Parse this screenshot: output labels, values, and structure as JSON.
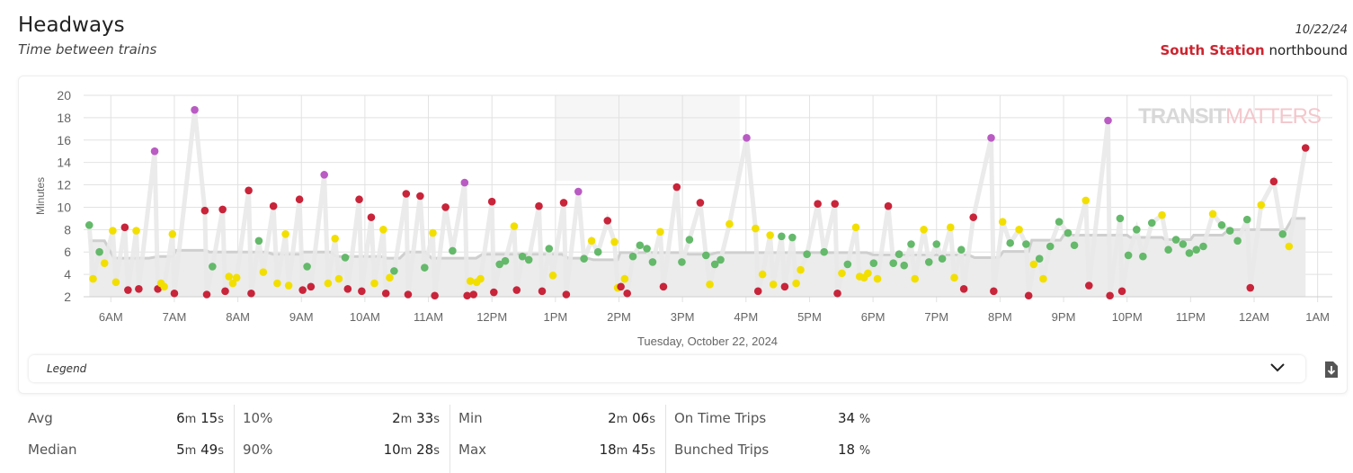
{
  "header": {
    "title": "Headways",
    "subtitle": "Time between trains",
    "date": "10/22/24",
    "station": "South Station",
    "direction": "northbound"
  },
  "legend": {
    "label": "Legend"
  },
  "stats": [
    {
      "label": "Avg",
      "min": "6",
      "sec": "15"
    },
    {
      "label": "Median",
      "min": "5",
      "sec": "49"
    },
    {
      "label": "10%",
      "min": "2",
      "sec": "33"
    },
    {
      "label": "90%",
      "min": "10",
      "sec": "28"
    },
    {
      "label": "Min",
      "min": "2",
      "sec": "06"
    },
    {
      "label": "Max",
      "min": "18",
      "sec": "45"
    },
    {
      "label": "On Time Trips",
      "value": "34",
      "unit": "%"
    },
    {
      "label": "Bunched Trips",
      "value": "18",
      "unit": "%"
    }
  ],
  "units": {
    "m": "m",
    "s": "s"
  },
  "watermark": {
    "part1": "TRANSIT",
    "part2": "MATTERS"
  },
  "colors": {
    "green": "#64b96a",
    "yellow": "#f2df00",
    "red": "#c8243a",
    "purple": "#b95bc3",
    "line": "#e9e9e9",
    "benchmark_fill": "#ececec",
    "benchmark_line": "#cfcfcf"
  },
  "chart_data": {
    "type": "scatter",
    "title": "",
    "xlabel": "Tuesday, October 22, 2024",
    "ylabel": "Minutes",
    "ylim": [
      2,
      20
    ],
    "yticks": [
      2,
      4,
      6,
      8,
      10,
      12,
      14,
      16,
      18,
      20
    ],
    "xlim_hours": [
      5.57,
      25.25
    ],
    "xticks": [
      {
        "h": 6,
        "label": "6AM"
      },
      {
        "h": 7,
        "label": "7AM"
      },
      {
        "h": 8,
        "label": "8AM"
      },
      {
        "h": 9,
        "label": "9AM"
      },
      {
        "h": 10,
        "label": "10AM"
      },
      {
        "h": 11,
        "label": "11AM"
      },
      {
        "h": 12,
        "label": "12PM"
      },
      {
        "h": 13,
        "label": "1PM"
      },
      {
        "h": 14,
        "label": "2PM"
      },
      {
        "h": 15,
        "label": "3PM"
      },
      {
        "h": 16,
        "label": "4PM"
      },
      {
        "h": 17,
        "label": "5PM"
      },
      {
        "h": 18,
        "label": "6PM"
      },
      {
        "h": 19,
        "label": "7PM"
      },
      {
        "h": 20,
        "label": "8PM"
      },
      {
        "h": 21,
        "label": "9PM"
      },
      {
        "h": 22,
        "label": "10PM"
      },
      {
        "h": 23,
        "label": "11PM"
      },
      {
        "h": 24,
        "label": "12AM"
      },
      {
        "h": 25,
        "label": "1AM"
      }
    ],
    "grid": true,
    "point_fields": [
      "hour",
      "headway_min",
      "status"
    ],
    "points": [
      [
        5.66,
        8.4,
        "g"
      ],
      [
        5.72,
        3.6,
        "y"
      ],
      [
        5.82,
        6.0,
        "g"
      ],
      [
        5.9,
        5.0,
        "y"
      ],
      [
        6.03,
        7.9,
        "y"
      ],
      [
        6.08,
        3.3,
        "y"
      ],
      [
        6.22,
        8.2,
        "r"
      ],
      [
        6.27,
        2.6,
        "r"
      ],
      [
        6.4,
        7.9,
        "y"
      ],
      [
        6.44,
        2.7,
        "r"
      ],
      [
        6.69,
        15.0,
        "p"
      ],
      [
        6.74,
        2.7,
        "r"
      ],
      [
        6.79,
        3.2,
        "y"
      ],
      [
        6.84,
        2.9,
        "y"
      ],
      [
        6.97,
        7.6,
        "y"
      ],
      [
        7.0,
        2.3,
        "r"
      ],
      [
        7.32,
        18.7,
        "p"
      ],
      [
        7.48,
        9.7,
        "r"
      ],
      [
        7.51,
        2.2,
        "r"
      ],
      [
        7.6,
        4.7,
        "g"
      ],
      [
        7.76,
        9.8,
        "r"
      ],
      [
        7.8,
        2.5,
        "r"
      ],
      [
        7.86,
        3.8,
        "y"
      ],
      [
        7.92,
        3.2,
        "y"
      ],
      [
        7.98,
        3.7,
        "y"
      ],
      [
        8.17,
        11.5,
        "r"
      ],
      [
        8.21,
        2.3,
        "r"
      ],
      [
        8.33,
        7.0,
        "g"
      ],
      [
        8.4,
        4.2,
        "y"
      ],
      [
        8.56,
        10.1,
        "r"
      ],
      [
        8.62,
        3.2,
        "y"
      ],
      [
        8.75,
        7.6,
        "y"
      ],
      [
        8.8,
        3.0,
        "y"
      ],
      [
        8.97,
        10.7,
        "r"
      ],
      [
        9.02,
        2.6,
        "r"
      ],
      [
        9.09,
        4.7,
        "g"
      ],
      [
        9.15,
        2.9,
        "r"
      ],
      [
        9.36,
        12.9,
        "p"
      ],
      [
        9.42,
        3.2,
        "y"
      ],
      [
        9.53,
        7.2,
        "y"
      ],
      [
        9.59,
        3.6,
        "y"
      ],
      [
        9.69,
        5.5,
        "g"
      ],
      [
        9.73,
        2.7,
        "r"
      ],
      [
        9.91,
        10.7,
        "r"
      ],
      [
        9.95,
        2.5,
        "r"
      ],
      [
        10.1,
        9.1,
        "r"
      ],
      [
        10.15,
        3.2,
        "y"
      ],
      [
        10.29,
        8.0,
        "y"
      ],
      [
        10.33,
        2.3,
        "r"
      ],
      [
        10.39,
        3.7,
        "y"
      ],
      [
        10.46,
        4.3,
        "g"
      ],
      [
        10.65,
        11.2,
        "r"
      ],
      [
        10.68,
        2.2,
        "r"
      ],
      [
        10.87,
        11.0,
        "r"
      ],
      [
        10.94,
        4.6,
        "g"
      ],
      [
        11.07,
        7.7,
        "y"
      ],
      [
        11.1,
        2.1,
        "r"
      ],
      [
        11.27,
        10.0,
        "r"
      ],
      [
        11.38,
        6.1,
        "g"
      ],
      [
        11.57,
        12.2,
        "p"
      ],
      [
        11.61,
        2.1,
        "r"
      ],
      [
        11.66,
        3.4,
        "y"
      ],
      [
        11.71,
        2.2,
        "r"
      ],
      [
        11.76,
        3.3,
        "y"
      ],
      [
        11.82,
        3.6,
        "y"
      ],
      [
        12.0,
        10.5,
        "r"
      ],
      [
        12.03,
        2.4,
        "r"
      ],
      [
        12.12,
        4.9,
        "g"
      ],
      [
        12.21,
        5.2,
        "g"
      ],
      [
        12.35,
        8.3,
        "y"
      ],
      [
        12.39,
        2.6,
        "r"
      ],
      [
        12.48,
        5.6,
        "g"
      ],
      [
        12.58,
        5.3,
        "g"
      ],
      [
        12.74,
        10.1,
        "r"
      ],
      [
        12.79,
        2.5,
        "r"
      ],
      [
        12.9,
        6.3,
        "g"
      ],
      [
        12.96,
        3.9,
        "y"
      ],
      [
        13.13,
        10.4,
        "r"
      ],
      [
        13.17,
        2.2,
        "r"
      ],
      [
        13.36,
        11.4,
        "p"
      ],
      [
        13.45,
        5.4,
        "g"
      ],
      [
        13.57,
        7.0,
        "y"
      ],
      [
        13.67,
        6.0,
        "g"
      ],
      [
        13.82,
        8.8,
        "r"
      ],
      [
        13.93,
        6.9,
        "y"
      ],
      [
        13.98,
        2.8,
        "y"
      ],
      [
        14.03,
        2.9,
        "r"
      ],
      [
        14.09,
        3.6,
        "y"
      ],
      [
        14.13,
        2.3,
        "r"
      ],
      [
        14.22,
        5.6,
        "g"
      ],
      [
        14.33,
        6.6,
        "g"
      ],
      [
        14.44,
        6.3,
        "g"
      ],
      [
        14.53,
        5.1,
        "g"
      ],
      [
        14.65,
        7.8,
        "y"
      ],
      [
        14.7,
        2.9,
        "r"
      ],
      [
        14.91,
        11.8,
        "r"
      ],
      [
        14.99,
        5.1,
        "g"
      ],
      [
        15.11,
        7.1,
        "g"
      ],
      [
        15.28,
        10.4,
        "r"
      ],
      [
        15.37,
        5.7,
        "g"
      ],
      [
        15.43,
        3.1,
        "y"
      ],
      [
        15.51,
        4.9,
        "g"
      ],
      [
        15.6,
        5.3,
        "g"
      ],
      [
        15.74,
        8.5,
        "y"
      ],
      [
        16.01,
        16.2,
        "p"
      ],
      [
        16.15,
        8.1,
        "y"
      ],
      [
        16.19,
        2.5,
        "r"
      ],
      [
        16.26,
        4.0,
        "y"
      ],
      [
        16.38,
        7.5,
        "y"
      ],
      [
        16.43,
        3.1,
        "y"
      ],
      [
        16.56,
        7.4,
        "g"
      ],
      [
        16.61,
        2.9,
        "r"
      ],
      [
        16.73,
        7.3,
        "g"
      ],
      [
        16.79,
        3.2,
        "y"
      ],
      [
        16.86,
        4.4,
        "y"
      ],
      [
        16.96,
        5.8,
        "g"
      ],
      [
        17.13,
        10.3,
        "r"
      ],
      [
        17.23,
        6.0,
        "g"
      ],
      [
        17.4,
        10.3,
        "r"
      ],
      [
        17.44,
        2.3,
        "r"
      ],
      [
        17.51,
        4.1,
        "y"
      ],
      [
        17.6,
        4.9,
        "g"
      ],
      [
        17.73,
        8.2,
        "y"
      ],
      [
        17.79,
        3.8,
        "y"
      ],
      [
        17.86,
        3.7,
        "y"
      ],
      [
        17.92,
        4.1,
        "y"
      ],
      [
        18.01,
        5.0,
        "g"
      ],
      [
        18.07,
        3.6,
        "y"
      ],
      [
        18.24,
        10.1,
        "r"
      ],
      [
        18.32,
        5.0,
        "g"
      ],
      [
        18.41,
        5.8,
        "g"
      ],
      [
        18.49,
        4.8,
        "g"
      ],
      [
        18.6,
        6.7,
        "g"
      ],
      [
        18.66,
        3.6,
        "y"
      ],
      [
        18.8,
        8.0,
        "y"
      ],
      [
        18.88,
        5.1,
        "g"
      ],
      [
        19.0,
        6.7,
        "g"
      ],
      [
        19.09,
        5.4,
        "g"
      ],
      [
        19.22,
        8.2,
        "y"
      ],
      [
        19.28,
        3.7,
        "y"
      ],
      [
        19.39,
        6.2,
        "g"
      ],
      [
        19.43,
        2.7,
        "r"
      ],
      [
        19.58,
        9.1,
        "r"
      ],
      [
        19.86,
        16.2,
        "p"
      ],
      [
        19.9,
        2.5,
        "r"
      ],
      [
        20.04,
        8.7,
        "y"
      ],
      [
        20.16,
        6.8,
        "g"
      ],
      [
        20.3,
        8.0,
        "y"
      ],
      [
        20.41,
        6.7,
        "g"
      ],
      [
        20.45,
        2.1,
        "r"
      ],
      [
        20.53,
        4.9,
        "y"
      ],
      [
        20.62,
        5.4,
        "g"
      ],
      [
        20.68,
        3.6,
        "y"
      ],
      [
        20.79,
        6.5,
        "g"
      ],
      [
        20.93,
        8.7,
        "g"
      ],
      [
        21.07,
        7.7,
        "g"
      ],
      [
        21.17,
        6.6,
        "g"
      ],
      [
        21.35,
        10.6,
        "y"
      ],
      [
        21.4,
        3.0,
        "r"
      ],
      [
        21.7,
        17.75,
        "p"
      ],
      [
        21.73,
        2.1,
        "r"
      ],
      [
        21.89,
        9.0,
        "g"
      ],
      [
        21.92,
        2.5,
        "r"
      ],
      [
        22.02,
        5.7,
        "g"
      ],
      [
        22.15,
        8.0,
        "g"
      ],
      [
        22.25,
        5.6,
        "g"
      ],
      [
        22.39,
        8.6,
        "g"
      ],
      [
        22.55,
        9.3,
        "y"
      ],
      [
        22.65,
        6.2,
        "g"
      ],
      [
        22.77,
        7.1,
        "g"
      ],
      [
        22.88,
        6.7,
        "g"
      ],
      [
        22.98,
        5.9,
        "g"
      ],
      [
        23.09,
        6.2,
        "g"
      ],
      [
        23.2,
        6.5,
        "g"
      ],
      [
        23.35,
        9.4,
        "y"
      ],
      [
        23.49,
        8.4,
        "g"
      ],
      [
        23.62,
        7.9,
        "g"
      ],
      [
        23.74,
        7.0,
        "g"
      ],
      [
        23.89,
        8.9,
        "g"
      ],
      [
        23.94,
        2.8,
        "r"
      ],
      [
        24.11,
        10.2,
        "y"
      ],
      [
        24.31,
        12.3,
        "r"
      ],
      [
        24.45,
        7.6,
        "g"
      ],
      [
        24.55,
        6.5,
        "y"
      ],
      [
        24.81,
        15.3,
        "r"
      ]
    ],
    "benchmark": [
      [
        5.66,
        7.0
      ],
      [
        5.9,
        7.0
      ],
      [
        6.05,
        5.45
      ],
      [
        6.6,
        5.45
      ],
      [
        6.75,
        5.6
      ],
      [
        6.98,
        5.6
      ],
      [
        7.02,
        6.15
      ],
      [
        7.5,
        6.15
      ],
      [
        7.55,
        6.0
      ],
      [
        8.45,
        6.0
      ],
      [
        8.55,
        5.8
      ],
      [
        9.0,
        5.8
      ],
      [
        9.02,
        6.0
      ],
      [
        9.45,
        6.0
      ],
      [
        9.55,
        5.6
      ],
      [
        10.25,
        5.6
      ],
      [
        10.35,
        5.45
      ],
      [
        10.55,
        5.45
      ],
      [
        10.65,
        6.0
      ],
      [
        10.95,
        6.0
      ],
      [
        11.05,
        5.45
      ],
      [
        11.75,
        5.45
      ],
      [
        11.85,
        5.8
      ],
      [
        13.1,
        5.8
      ],
      [
        13.2,
        5.45
      ],
      [
        13.5,
        5.45
      ],
      [
        13.6,
        5.3
      ],
      [
        13.98,
        5.3
      ],
      [
        14.02,
        5.95
      ],
      [
        15.0,
        5.95
      ],
      [
        15.1,
        5.8
      ],
      [
        15.45,
        5.8
      ],
      [
        15.55,
        5.95
      ],
      [
        17.9,
        5.95
      ],
      [
        18.0,
        5.75
      ],
      [
        19.5,
        5.75
      ],
      [
        19.6,
        5.5
      ],
      [
        19.98,
        5.5
      ],
      [
        20.05,
        6.05
      ],
      [
        20.45,
        6.05
      ],
      [
        20.5,
        7.05
      ],
      [
        20.95,
        7.05
      ],
      [
        21.0,
        7.5
      ],
      [
        22.0,
        7.5
      ],
      [
        22.05,
        7.3
      ],
      [
        22.55,
        7.3
      ],
      [
        22.6,
        7.1
      ],
      [
        23.0,
        7.1
      ],
      [
        23.05,
        7.5
      ],
      [
        23.5,
        7.5
      ],
      [
        23.6,
        8.0
      ],
      [
        24.5,
        8.0
      ],
      [
        24.6,
        9.0
      ],
      [
        24.81,
        9.0
      ]
    ],
    "status_legend": {
      "g": "green",
      "y": "yellow",
      "r": "red",
      "p": "purple"
    }
  }
}
